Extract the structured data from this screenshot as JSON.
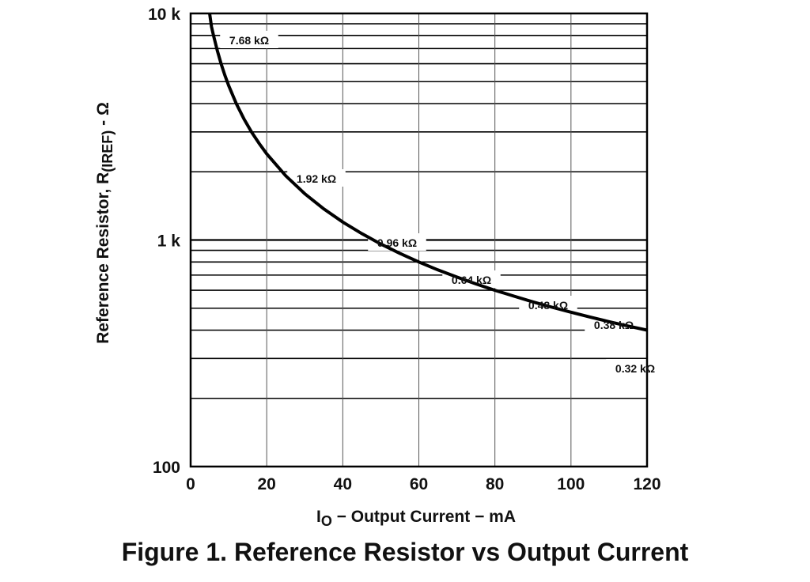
{
  "chart_data": {
    "type": "line",
    "title": "Figure 1. Reference Resistor vs Output Current",
    "xlabel": {
      "main": "I",
      "sub": "O",
      "rest": " − Output Current − mA"
    },
    "ylabel": {
      "main": "Reference Resistor, R",
      "sub": "(IREF)",
      "rest": " - Ω"
    },
    "x_scale": "linear",
    "y_scale": "log",
    "xlim": [
      0,
      120
    ],
    "ylim": [
      100,
      10000
    ],
    "x_ticks": [
      0,
      20,
      40,
      60,
      80,
      100,
      120
    ],
    "x_tick_labels": [
      "0",
      "20",
      "40",
      "60",
      "80",
      "100",
      "120"
    ],
    "y_ticks": [
      100,
      1000,
      10000
    ],
    "y_tick_labels": [
      "100",
      "1 k",
      "10 k"
    ],
    "grid": true,
    "series": [
      {
        "x": [
          5,
          5.5,
          6,
          7,
          8,
          9,
          10,
          12,
          14,
          16,
          18,
          20,
          25,
          30,
          35,
          40,
          45,
          50,
          55,
          60,
          65,
          70,
          75,
          80,
          85,
          90,
          95,
          100,
          105,
          110,
          115,
          120
        ],
        "y": [
          10000,
          8727,
          8000,
          6857,
          6000,
          5333,
          4800,
          4000,
          3429,
          3000,
          2667,
          2400,
          1920,
          1600,
          1371,
          1200,
          1067,
          960,
          873,
          800,
          738,
          686,
          640,
          600,
          565,
          533,
          505,
          480,
          457,
          436,
          417,
          400
        ]
      }
    ],
    "annotations": [
      {
        "text": "7.68 kΩ",
        "x": 6.25,
        "y": 7680
      },
      {
        "text": "1.92 kΩ",
        "x": 25,
        "y": 1920
      },
      {
        "text": "0.96 kΩ",
        "x": 50,
        "y": 960
      },
      {
        "text": "0.64 kΩ",
        "x": 75,
        "y": 640
      },
      {
        "text": "0.48 kΩ",
        "x": 100,
        "y": 480
      },
      {
        "text": "0.38 kΩ",
        "x": 125,
        "y": 384
      },
      {
        "text": "0.32 kΩ",
        "x": 150,
        "y": 320
      }
    ]
  }
}
